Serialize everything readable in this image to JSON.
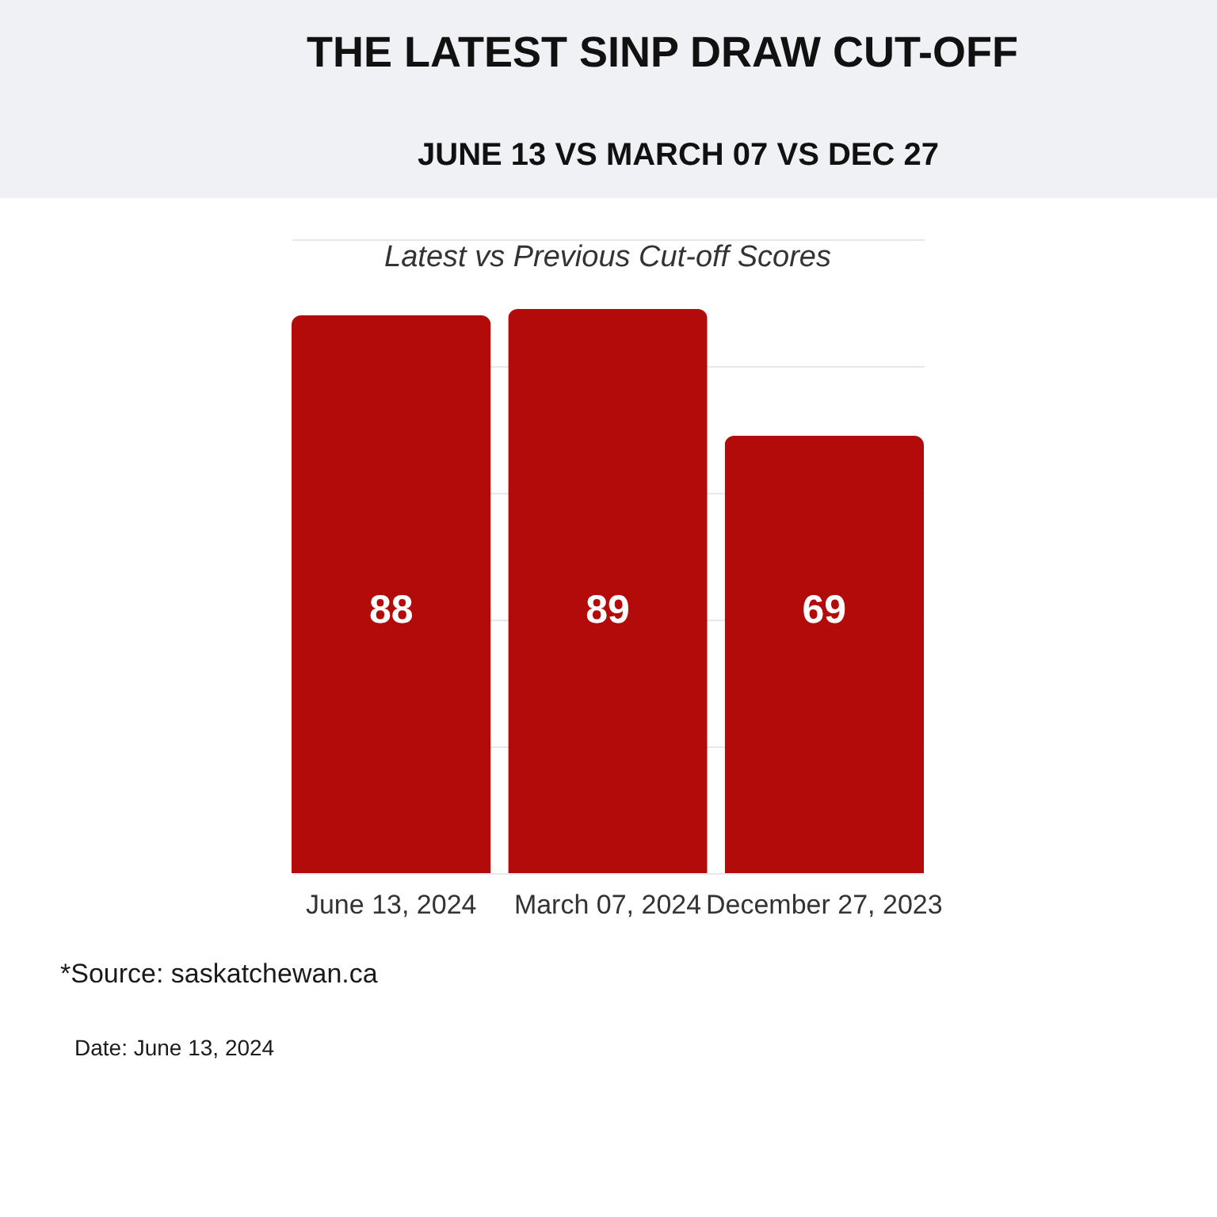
{
  "chart_data": {
    "type": "bar",
    "title": "THE LATEST SINP DRAW CUT-OFF",
    "subtitle": "JUNE 13 VS MARCH 07 VS DEC 27",
    "categories": [
      "June 13, 2024",
      "March 07, 2024",
      "December 27, 2023"
    ],
    "values": [
      88,
      89,
      69
    ],
    "color": "#b30a0a",
    "ylim": [
      0,
      100
    ],
    "yticks": [
      0,
      20,
      40,
      60,
      80,
      100
    ],
    "grid": "y",
    "tick_labels": "x",
    "data_labels": true,
    "annotations": [
      "Latest vs Previous Cut-off Scores",
      "*Source: saskatchewan.ca",
      "Date: June 13, 2024"
    ]
  }
}
